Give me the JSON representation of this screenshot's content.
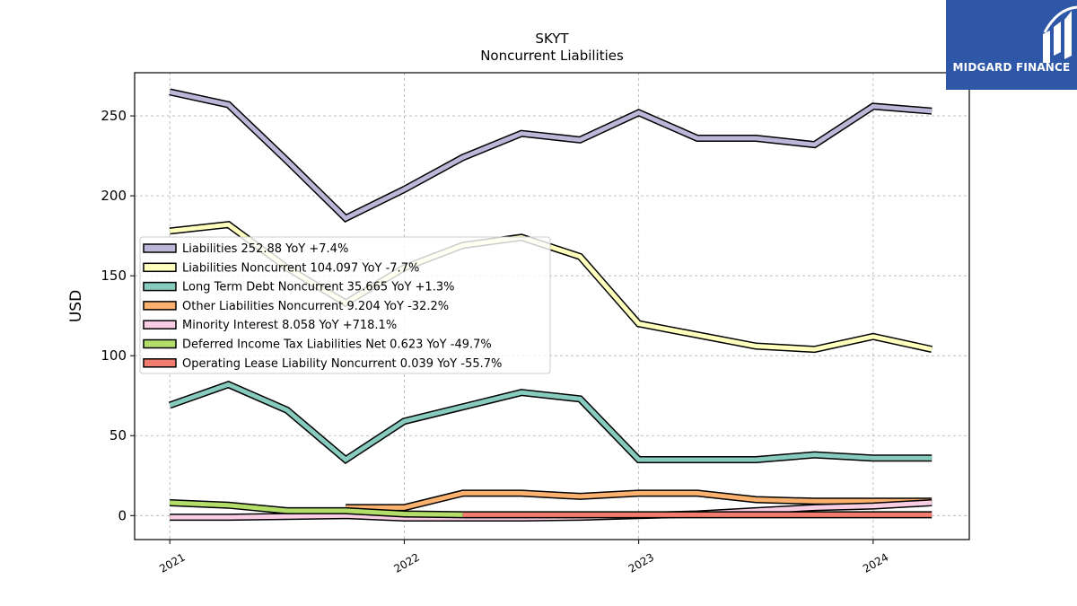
{
  "brand": {
    "name": "MIDGARD FINANCE",
    "logo_icon": "midgard-logo-icon",
    "color": "#2f57a8"
  },
  "chart_data": {
    "type": "line",
    "title": "SKYT",
    "subtitle": "Noncurrent  Liabilities",
    "xlabel": "",
    "ylabel": "USD",
    "ylim": [
      -15,
      277
    ],
    "y_ticks": [
      0,
      50,
      100,
      150,
      200,
      250
    ],
    "x_ticks": [
      "2021",
      "2022",
      "2023",
      "2024"
    ],
    "x_tick_years": [
      2021.0,
      2022.0,
      2023.0,
      2024.0
    ],
    "xlim": [
      2020.85,
      2024.41
    ],
    "grid": true,
    "legend_position": "center-left",
    "series": [
      {
        "name": "Liabilities",
        "legend": "Liabilities  252.88 YoY +7.4%",
        "color": "#bcb6d8",
        "x": [
          2021.0,
          2021.25,
          2021.5,
          2021.75,
          2022.0,
          2022.25,
          2022.5,
          2022.75,
          2023.0,
          2023.25,
          2023.5,
          2023.75,
          2024.0,
          2024.25
        ],
        "y": [
          265,
          257,
          222,
          186,
          204,
          224,
          239,
          235,
          252,
          236,
          236,
          232,
          256,
          253
        ]
      },
      {
        "name": "Liabilities Noncurrent",
        "legend": "Liabilities Noncurrent  104.097 YoY -7.7%",
        "color": "#ffffbe",
        "x": [
          2021.0,
          2021.25,
          2021.5,
          2021.75,
          2022.0,
          2022.25,
          2022.5,
          2022.75,
          2023.0,
          2023.25,
          2023.5,
          2023.75,
          2024.0,
          2024.25
        ],
        "y": [
          178,
          182,
          155,
          133,
          155,
          169,
          174,
          162,
          120,
          113,
          106,
          104,
          112,
          104
        ]
      },
      {
        "name": "Long Term Debt Noncurrent",
        "legend": "Long Term Debt Noncurrent  35.665 YoY +1.3%",
        "color": "#86cbbe",
        "x": [
          2021.0,
          2021.25,
          2021.5,
          2021.75,
          2022.0,
          2022.25,
          2022.5,
          2022.75,
          2023.0,
          2023.25,
          2023.5,
          2023.75,
          2024.0,
          2024.25
        ],
        "y": [
          69,
          82,
          66,
          35,
          59,
          68,
          77,
          73,
          35,
          35,
          35,
          38,
          36,
          36
        ]
      },
      {
        "name": "Other Liabilities Noncurrent",
        "legend": "Other Liabilities Noncurrent  9.204 YoY -32.2%",
        "color": "#fcb26e",
        "x": [
          2021.75,
          2022.0,
          2022.25,
          2022.5,
          2022.75,
          2023.0,
          2023.25,
          2023.5,
          2023.75,
          2024.0,
          2024.25
        ],
        "y": [
          5,
          5,
          14,
          14,
          12,
          14,
          14,
          10,
          9,
          9,
          9
        ]
      },
      {
        "name": "Minority Interest",
        "legend": "Minority Interest  8.058 YoY +718.1%",
        "color": "#f9cde4",
        "x": [
          2021.0,
          2021.25,
          2021.5,
          2021.75,
          2022.0,
          2022.25,
          2022.5,
          2022.75,
          2023.0,
          2023.25,
          2023.5,
          2023.75,
          2024.0,
          2024.25
        ],
        "y": [
          -1,
          -1,
          -0.5,
          0,
          -1.5,
          -1.5,
          -1.5,
          -1,
          0,
          1,
          3,
          5,
          6,
          8
        ]
      },
      {
        "name": "Deferred Income Tax Liabilities Net",
        "legend": "Deferred Income Tax Liabilities Net  0.623 YoY -49.7%",
        "color": "#b3de69",
        "x": [
          2021.0,
          2021.25,
          2021.5,
          2021.75,
          2022.0,
          2022.25
        ],
        "y": [
          8,
          6.5,
          3,
          3,
          1,
          0.5
        ]
      },
      {
        "name": "Operating Lease Liability Noncurrent",
        "legend": "Operating Lease Liability Noncurrent  0.039 YoY -55.7%",
        "color": "#f47c6e",
        "x": [
          2022.25,
          2022.5,
          2022.75,
          2023.0,
          2023.25,
          2023.5,
          2023.75,
          2024.0,
          2024.25
        ],
        "y": [
          0.5,
          0.5,
          0.5,
          0.5,
          0.5,
          0.5,
          0.5,
          0.5,
          0.5
        ]
      }
    ]
  }
}
